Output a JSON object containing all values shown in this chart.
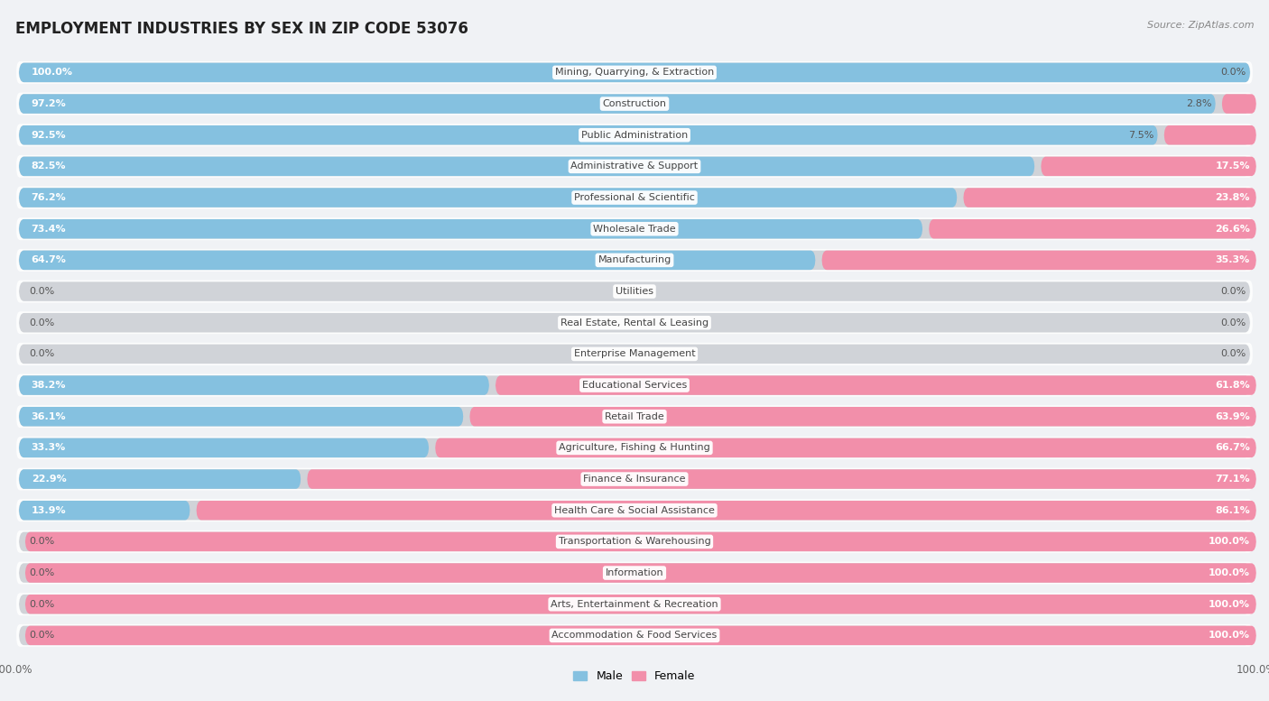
{
  "title": "EMPLOYMENT INDUSTRIES BY SEX IN ZIP CODE 53076",
  "source": "Source: ZipAtlas.com",
  "categories": [
    "Mining, Quarrying, & Extraction",
    "Construction",
    "Public Administration",
    "Administrative & Support",
    "Professional & Scientific",
    "Wholesale Trade",
    "Manufacturing",
    "Utilities",
    "Real Estate, Rental & Leasing",
    "Enterprise Management",
    "Educational Services",
    "Retail Trade",
    "Agriculture, Fishing & Hunting",
    "Finance & Insurance",
    "Health Care & Social Assistance",
    "Transportation & Warehousing",
    "Information",
    "Arts, Entertainment & Recreation",
    "Accommodation & Food Services"
  ],
  "male": [
    100.0,
    97.2,
    92.5,
    82.5,
    76.2,
    73.4,
    64.7,
    0.0,
    0.0,
    0.0,
    38.2,
    36.1,
    33.3,
    22.9,
    13.9,
    0.0,
    0.0,
    0.0,
    0.0
  ],
  "female": [
    0.0,
    2.8,
    7.5,
    17.5,
    23.8,
    26.6,
    35.3,
    0.0,
    0.0,
    0.0,
    61.8,
    63.9,
    66.7,
    77.1,
    86.1,
    100.0,
    100.0,
    100.0,
    100.0
  ],
  "male_color": "#85c1e0",
  "female_color": "#f28faa",
  "background_color": "#f0f2f5",
  "row_bg_color": "#e8eaed",
  "bar_bg_color": "#d0d3d8",
  "title_fontsize": 12,
  "source_fontsize": 8,
  "label_fontsize": 8,
  "pct_fontsize": 8,
  "bar_height": 0.62,
  "figsize": [
    14.06,
    7.77
  ],
  "male_label_color_inside": "#ffffff",
  "male_label_color_outside": "#555555",
  "female_label_color_inside": "#ffffff",
  "female_label_color_outside": "#555555",
  "cat_label_color": "#444444",
  "axis_label_color": "#666666"
}
